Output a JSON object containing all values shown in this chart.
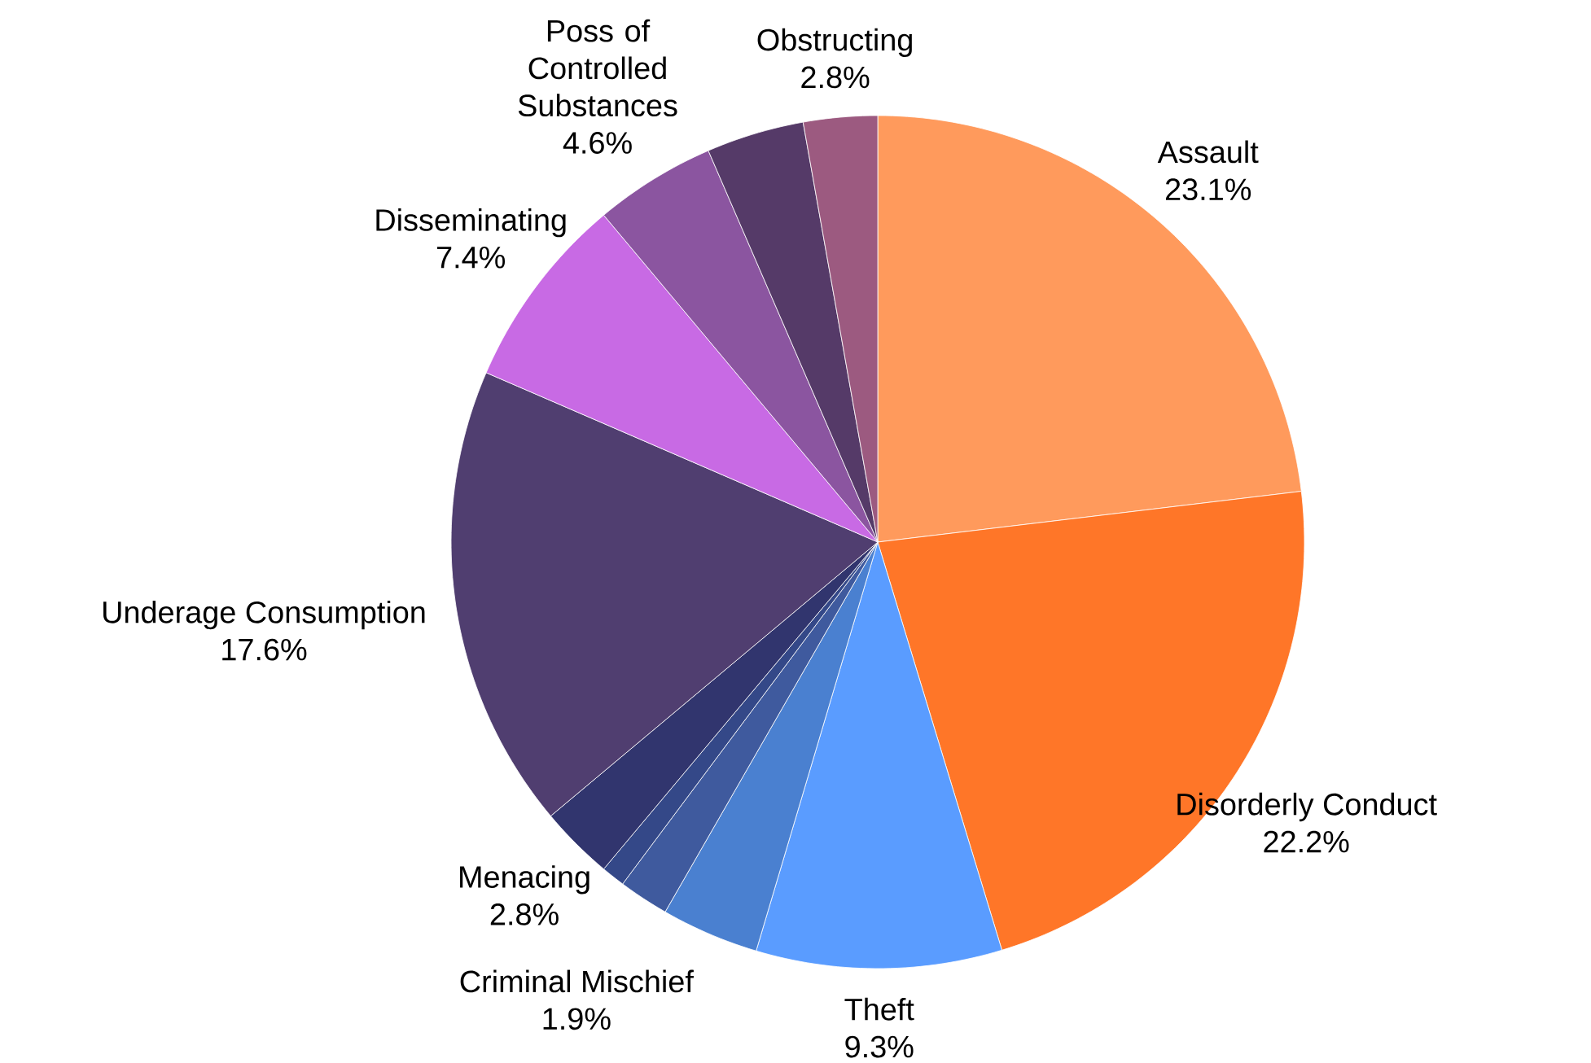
{
  "chart_data": {
    "type": "pie",
    "categories": [
      "Assault",
      "Disorderly Conduct",
      "Theft",
      null,
      "Criminal Mischief",
      null,
      "Menacing",
      "Underage Consumption",
      "Disseminating",
      "Poss of Controlled Substances",
      null,
      "Obstructing"
    ],
    "values": [
      23.1,
      22.2,
      9.3,
      3.7,
      1.9,
      0.9,
      2.8,
      17.6,
      7.4,
      4.6,
      3.7,
      2.8
    ],
    "value_labels": [
      "23.1%",
      "22.2%",
      "9.3%",
      null,
      "1.9%",
      null,
      "2.8%",
      "17.6%",
      "7.4%",
      "4.6%",
      null,
      "2.8%"
    ],
    "colors": [
      "#ff9a5c",
      "#ff7628",
      "#5a9cff",
      "#4a80d0",
      "#3f5a9e",
      "#344888",
      "#31356e",
      "#503e70",
      "#c86ae4",
      "#8b55a0",
      "#553a68",
      "#9c5a80"
    ]
  }
}
